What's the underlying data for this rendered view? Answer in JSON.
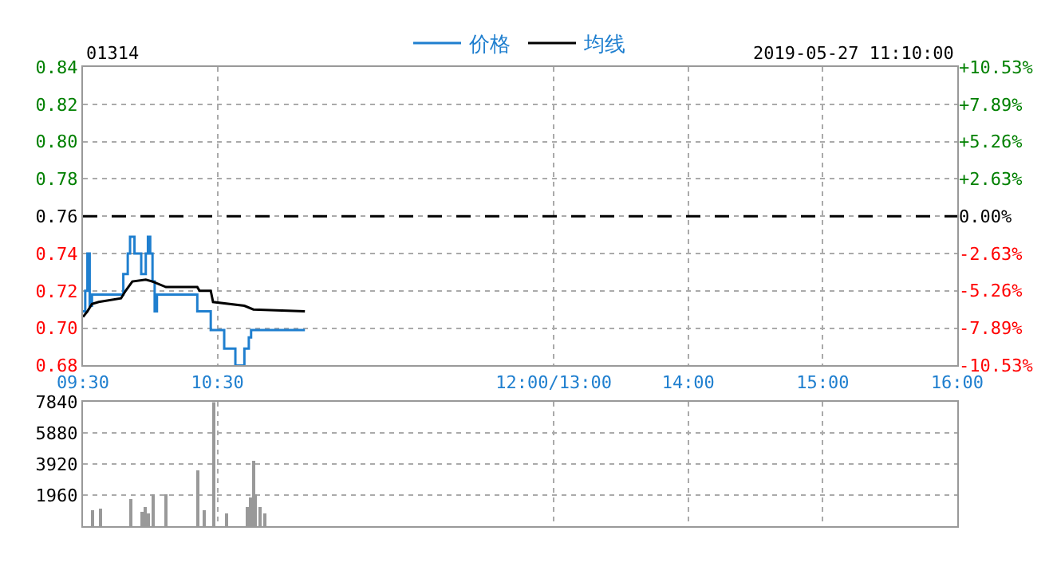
{
  "chart_data": [
    {
      "type": "step",
      "title": "01314",
      "subtitle": "2019-05-27 11:10:00",
      "xlim": [
        9.5,
        16
      ],
      "xticks": [
        {
          "value": 9.5,
          "label": "09:30"
        },
        {
          "value": 10.5,
          "label": "10:30"
        },
        {
          "value": 13,
          "label": "12:00/13:00"
        },
        {
          "value": 14,
          "label": "14:00"
        },
        {
          "value": 15,
          "label": "15:00"
        },
        {
          "value": 16,
          "label": "16:00"
        }
      ],
      "ylim": [
        0.68,
        0.84
      ],
      "yticks": [
        {
          "value": 0.68,
          "label": "0.68"
        },
        {
          "value": 0.7,
          "label": "0.70"
        },
        {
          "value": 0.72,
          "label": "0.72"
        },
        {
          "value": 0.74,
          "label": "0.74"
        },
        {
          "value": 0.76,
          "label": "0.76"
        },
        {
          "value": 0.78,
          "label": "0.78"
        },
        {
          "value": 0.8,
          "label": "0.80"
        },
        {
          "value": 0.82,
          "label": "0.82"
        },
        {
          "value": 0.84,
          "label": "0.84"
        }
      ],
      "y2lim": [
        -10.53,
        10.53
      ],
      "y2ticks": [
        {
          "value": -10.53,
          "label": "-10.53%"
        },
        {
          "value": -7.89,
          "label": "-7.89%"
        },
        {
          "value": -5.26,
          "label": "-5.26%"
        },
        {
          "value": -2.63,
          "label": "-2.63%"
        },
        {
          "value": 0,
          "label": "0.00%"
        },
        {
          "value": 2.63,
          "label": "+2.63%"
        },
        {
          "value": 5.26,
          "label": "+5.26%"
        },
        {
          "value": 7.89,
          "label": "+7.89%"
        },
        {
          "value": 10.53,
          "label": "+10.53%"
        }
      ],
      "ref_lines": [
        {
          "axis": "y",
          "value": 0.76,
          "color": "#000000",
          "line_style": "dashed"
        }
      ],
      "grid": true,
      "legend": "top",
      "marker": "none",
      "series": [
        {
          "name": "价格",
          "color": "#1f7fcf",
          "x": [
            9.5,
            9.517,
            9.533,
            9.55,
            9.567,
            9.8,
            9.833,
            9.85,
            9.883,
            9.933,
            9.967,
            9.983,
            10.0,
            10.017,
            10.033,
            10.05,
            10.35,
            10.45,
            10.55,
            10.633,
            10.7,
            10.733,
            10.75,
            11.15
          ],
          "values": [
            0.709,
            0.72,
            0.74,
            0.712,
            0.718,
            0.729,
            0.74,
            0.749,
            0.74,
            0.729,
            0.74,
            0.749,
            0.74,
            0.725,
            0.709,
            0.718,
            0.709,
            0.699,
            0.689,
            0.68,
            0.689,
            0.695,
            0.699,
            0.699
          ]
        },
        {
          "name": "均线",
          "color": "#000000",
          "type": "line",
          "x": [
            9.5,
            9.533,
            9.567,
            9.617,
            9.783,
            9.817,
            9.867,
            9.967,
            10.017,
            10.117,
            10.35,
            10.367,
            10.45,
            10.467,
            10.7,
            10.767,
            11.15
          ],
          "values": [
            0.706,
            0.709,
            0.713,
            0.714,
            0.716,
            0.72,
            0.725,
            0.726,
            0.725,
            0.722,
            0.722,
            0.72,
            0.72,
            0.714,
            0.712,
            0.71,
            0.709
          ]
        }
      ]
    },
    {
      "type": "bar",
      "color": "#999999",
      "tick_labels": "y",
      "grid": true,
      "xlim": [
        9.5,
        16
      ],
      "xticks": [
        {
          "value": 9.5,
          "label": null
        },
        {
          "value": 10.5,
          "label": null
        },
        {
          "value": 13,
          "label": null
        },
        {
          "value": 14,
          "label": null
        },
        {
          "value": 15,
          "label": null
        }
      ],
      "ylim": [
        0,
        7840
      ],
      "yticks": [
        1960,
        3920,
        5880,
        7840
      ],
      "x": [
        9.567,
        9.633,
        9.85,
        9.933,
        9.967,
        9.983,
        10.017,
        10.117,
        10.35,
        10.4,
        10.467,
        10.567,
        10.717,
        10.75,
        10.767,
        10.783,
        10.817,
        10.85
      ],
      "values": [
        1000,
        1100,
        1700,
        900,
        1200,
        800,
        2000,
        2000,
        3500,
        1000,
        7840,
        800,
        1200,
        1800,
        4100,
        2000,
        1200,
        800
      ]
    }
  ]
}
